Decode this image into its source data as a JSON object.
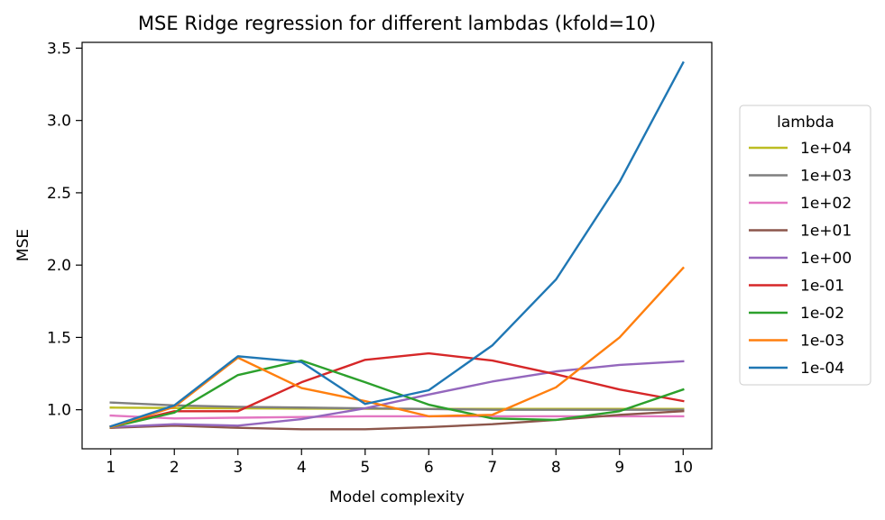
{
  "chart_data": {
    "type": "line",
    "title": "MSE Ridge regression for different lambdas (kfold=10)",
    "xlabel": "Model complexity",
    "ylabel": "MSE",
    "x": [
      1,
      2,
      3,
      4,
      5,
      6,
      7,
      8,
      9,
      10
    ],
    "xlim": [
      0.55,
      10.45
    ],
    "ylim": [
      0.73,
      3.54
    ],
    "xticks": [
      1,
      2,
      3,
      4,
      5,
      6,
      7,
      8,
      9,
      10
    ],
    "yticks": [
      1.0,
      1.5,
      2.0,
      2.5,
      3.0,
      3.5
    ],
    "ytick_labels": [
      "1.0",
      "1.5",
      "2.0",
      "2.5",
      "3.0",
      "3.5"
    ],
    "grid": false,
    "legend": {
      "title": "lambda",
      "placement": "outside-right"
    },
    "series": [
      {
        "name": "1e+04",
        "color": "#bcbd22",
        "values": [
          1.015,
          1.012,
          1.01,
          1.008,
          1.007,
          1.006,
          1.006,
          1.006,
          1.006,
          1.006
        ]
      },
      {
        "name": "1e+03",
        "color": "#7f7f7f",
        "values": [
          1.05,
          1.03,
          1.02,
          1.015,
          1.01,
          1.005,
          1.0,
          1.0,
          1.0,
          1.0
        ]
      },
      {
        "name": "1e+02",
        "color": "#e377c2",
        "values": [
          0.96,
          0.94,
          0.945,
          0.95,
          0.955,
          0.955,
          0.955,
          0.955,
          0.955,
          0.955
        ]
      },
      {
        "name": "1e+01",
        "color": "#8c564b",
        "values": [
          0.875,
          0.89,
          0.875,
          0.865,
          0.865,
          0.88,
          0.9,
          0.93,
          0.965,
          0.99
        ]
      },
      {
        "name": "1e+00",
        "color": "#9467bd",
        "values": [
          0.88,
          0.9,
          0.89,
          0.935,
          1.01,
          1.105,
          1.195,
          1.265,
          1.31,
          1.335
        ]
      },
      {
        "name": "1e-01",
        "color": "#d62728",
        "values": [
          0.885,
          0.99,
          0.99,
          1.19,
          1.345,
          1.39,
          1.34,
          1.245,
          1.14,
          1.06
        ]
      },
      {
        "name": "1e-02",
        "color": "#2ca02c",
        "values": [
          0.88,
          0.98,
          1.24,
          1.34,
          1.19,
          1.035,
          0.94,
          0.93,
          0.99,
          1.14
        ]
      },
      {
        "name": "1e-03",
        "color": "#ff7f0e",
        "values": [
          0.88,
          1.02,
          1.36,
          1.15,
          1.06,
          0.955,
          0.965,
          1.155,
          1.5,
          1.98
        ]
      },
      {
        "name": "1e-04",
        "color": "#1f77b4",
        "values": [
          0.885,
          1.03,
          1.37,
          1.33,
          1.04,
          1.135,
          1.445,
          1.9,
          2.575,
          3.4
        ]
      }
    ]
  }
}
